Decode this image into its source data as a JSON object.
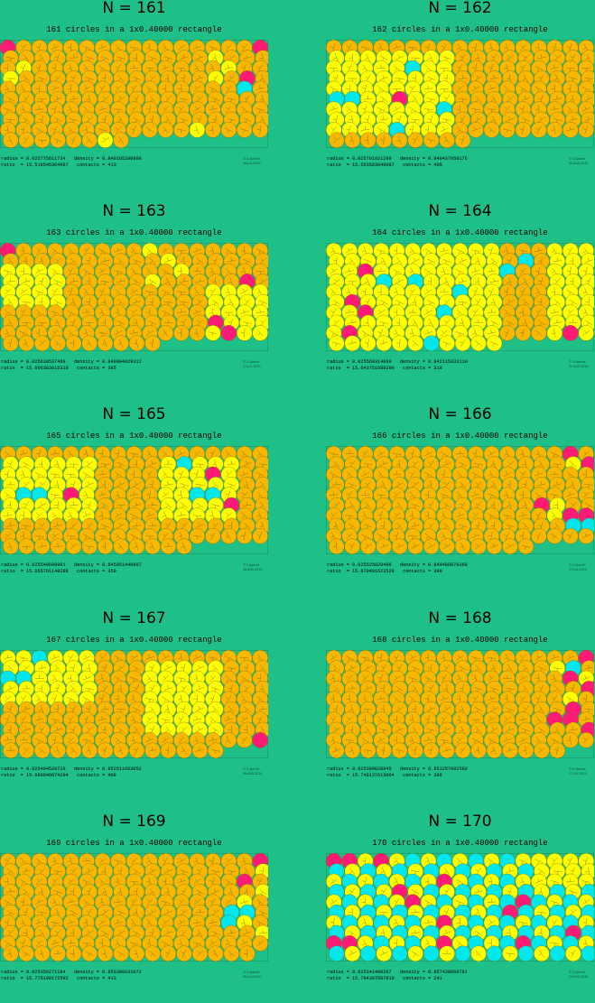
{
  "labels": {
    "radius": "radius =",
    "ratio": "ratio  =",
    "density": "density =",
    "contacts": "contacts ="
  },
  "colors": {
    "background": "#1fbf88",
    "orange": "#f9b800",
    "yellow": "#ffff00",
    "cyan": "#00e8ee",
    "magenta": "#ff1a75",
    "outline": "#7a6000"
  },
  "panels": [
    {
      "n": "N = 161",
      "subtitle": "161 circles in a 1x0.40000 rectangle",
      "radius": "0.025775611734",
      "ratio": "15.518545364987",
      "density": "0.840105290808",
      "contacts": "413",
      "copyright": "© E.Specht",
      "date": "18-JUL-2010",
      "count": 161,
      "special": [
        [
          0,
          0,
          "magenta"
        ],
        [
          0,
          16,
          "magenta"
        ],
        [
          3,
          15,
          "magenta"
        ],
        [
          1,
          13,
          "yellow"
        ],
        [
          2,
          14,
          "yellow"
        ],
        [
          3,
          13,
          "yellow"
        ],
        [
          4,
          15,
          "cyan"
        ],
        [
          2,
          1,
          "yellow"
        ],
        [
          3,
          0,
          "yellow"
        ],
        [
          9,
          14,
          "yellow"
        ],
        [
          9,
          6,
          "yellow"
        ],
        [
          8,
          12,
          "yellow"
        ]
      ]
    },
    {
      "n": "N = 162",
      "subtitle": "162 circles in a 1x0.40000 rectangle",
      "radius": "0.025701021299",
      "ratio": "15.563583849087",
      "density": "0.840437958176",
      "contacts": "405",
      "copyright": "© E.Specht",
      "date": "05-AUG-2010",
      "count": 162,
      "special": [
        [
          5,
          4,
          "magenta"
        ],
        [
          5,
          0,
          "cyan"
        ],
        [
          5,
          1,
          "cyan"
        ],
        [
          6,
          7,
          "cyan"
        ],
        [
          8,
          4,
          "cyan"
        ],
        [
          2,
          5,
          "cyan"
        ]
      ],
      "yellowzone": [
        [
          1,
          0,
          8,
          7
        ]
      ]
    },
    {
      "n": "N = 163",
      "subtitle": "163 circles in a 1x0.40000 rectangle",
      "radius": "0.025630537469",
      "ratio": "15.606383615310",
      "density": "0.840994029312",
      "contacts": "395",
      "copyright": "© E.Specht",
      "date": "17-JUL-2010",
      "count": 163,
      "special": [
        [
          0,
          0,
          "magenta"
        ],
        [
          3,
          15,
          "magenta"
        ],
        [
          7,
          13,
          "magenta"
        ],
        [
          8,
          14,
          "magenta"
        ],
        [
          0,
          9,
          "yellow"
        ],
        [
          1,
          10,
          "yellow"
        ],
        [
          2,
          11,
          "yellow"
        ],
        [
          3,
          9,
          "yellow"
        ]
      ],
      "yellowzone": [
        [
          4,
          13,
          9,
          16
        ],
        [
          2,
          0,
          5,
          3
        ]
      ]
    },
    {
      "n": "N = 164",
      "subtitle": "164 circles in a 1x0.40000 rectangle",
      "radius": "0.025569314060",
      "ratio": "15.643751688290",
      "density": "0.842115933110",
      "contacts": "319",
      "copyright": "© E.Specht",
      "date": "22-AUG-2010",
      "count": 164,
      "special": [
        [
          2,
          2,
          "magenta"
        ],
        [
          5,
          1,
          "magenta"
        ],
        [
          6,
          2,
          "magenta"
        ],
        [
          8,
          1,
          "magenta"
        ],
        [
          8,
          15,
          "magenta"
        ],
        [
          2,
          11,
          "cyan"
        ],
        [
          3,
          5,
          "cyan"
        ],
        [
          1,
          12,
          "cyan"
        ],
        [
          6,
          7,
          "cyan"
        ],
        [
          9,
          6,
          "cyan"
        ],
        [
          4,
          8,
          "cyan"
        ],
        [
          3,
          3,
          "cyan"
        ]
      ],
      "yellowzone": [
        [
          0,
          0,
          9,
          10
        ],
        [
          0,
          14,
          9,
          16
        ]
      ]
    },
    {
      "n": "N = 165",
      "subtitle": "165 circles in a 1x0.40000 rectangle",
      "radius": "0.025549699961",
      "ratio": "15.655761148288",
      "density": "0.845951440807",
      "contacts": "359",
      "copyright": "© E.Specht",
      "date": "18-AUG-2010",
      "count": 165,
      "special": [
        [
          2,
          13,
          "magenta"
        ],
        [
          4,
          4,
          "magenta"
        ],
        [
          5,
          14,
          "magenta"
        ],
        [
          4,
          1,
          "cyan"
        ],
        [
          4,
          2,
          "cyan"
        ],
        [
          1,
          11,
          "cyan"
        ],
        [
          4,
          12,
          "cyan"
        ],
        [
          4,
          13,
          "cyan"
        ]
      ],
      "yellowzone": [
        [
          1,
          0,
          6,
          5
        ],
        [
          1,
          10,
          6,
          14
        ]
      ]
    },
    {
      "n": "N = 166",
      "subtitle": "166 circles in a 1x0.40000 rectangle",
      "radius": "0.025525829498",
      "ratio": "15.670401623528",
      "density": "0.849488878368",
      "contacts": "390",
      "copyright": "© E.Specht",
      "date": "17-JUL-2010",
      "count": 166,
      "special": [
        [
          0,
          15,
          "magenta"
        ],
        [
          1,
          16,
          "magenta"
        ],
        [
          5,
          13,
          "magenta"
        ],
        [
          6,
          15,
          "magenta"
        ],
        [
          6,
          16,
          "magenta"
        ],
        [
          7,
          15,
          "cyan"
        ],
        [
          7,
          16,
          "cyan"
        ],
        [
          5,
          14,
          "yellow"
        ],
        [
          6,
          14,
          "yellow"
        ],
        [
          1,
          15,
          "yellow"
        ]
      ]
    },
    {
      "n": "N = 167",
      "subtitle": "167 circles in a 1x0.40000 rectangle",
      "radius": "0.025494528728",
      "ratio": "15.689640874294",
      "density": "0.852511663052",
      "contacts": "408",
      "copyright": "© E.Specht",
      "date": "08-AUG-2010",
      "count": 167,
      "special": [
        [
          0,
          2,
          "cyan"
        ],
        [
          2,
          1,
          "cyan"
        ],
        [
          2,
          0,
          "cyan"
        ],
        [
          8,
          16,
          "magenta"
        ]
      ],
      "yellowzone": [
        [
          0,
          0,
          4,
          5
        ],
        [
          1,
          9,
          7,
          13
        ]
      ]
    },
    {
      "n": "N = 168",
      "subtitle": "168 circles in a 1x0.40000 rectangle",
      "radius": "0.025399828845",
      "ratio": "15.748137613004",
      "density": "0.851257092580",
      "contacts": "389",
      "copyright": "© E.Specht",
      "date": "17-JUL-2010",
      "count": 168,
      "special": [
        [
          0,
          16,
          "magenta"
        ],
        [
          1,
          15,
          "cyan"
        ],
        [
          2,
          15,
          "magenta"
        ],
        [
          3,
          16,
          "magenta"
        ],
        [
          5,
          15,
          "magenta"
        ],
        [
          6,
          15,
          "magenta"
        ],
        [
          6,
          14,
          "magenta"
        ],
        [
          7,
          16,
          "magenta"
        ],
        [
          1,
          14,
          "yellow"
        ],
        [
          2,
          16,
          "yellow"
        ],
        [
          4,
          15,
          "yellow"
        ]
      ]
    },
    {
      "n": "N = 169",
      "subtitle": "169 circles in a 1x0.40000 rectangle",
      "radius": "0.025356271184",
      "ratio": "15.775190172592",
      "density": "0.853389631072",
      "contacts": "413",
      "copyright": "© E.Specht",
      "date": "05-JUL-2010",
      "count": 169,
      "special": [
        [
          0,
          16,
          "magenta"
        ],
        [
          2,
          15,
          "magenta"
        ],
        [
          5,
          14,
          "cyan"
        ],
        [
          5,
          15,
          "cyan"
        ],
        [
          6,
          14,
          "cyan"
        ],
        [
          1,
          16,
          "yellow"
        ],
        [
          3,
          16,
          "yellow"
        ],
        [
          4,
          15,
          "yellow"
        ],
        [
          6,
          15,
          "yellow"
        ],
        [
          7,
          16,
          "yellow"
        ]
      ]
    },
    {
      "n": "N = 170",
      "subtitle": "170 circles in a 1x0.40000 rectangle",
      "radius": "0.025341480267",
      "ratio": "15.784397587919",
      "density": "0.857438069781",
      "contacts": "241",
      "copyright": "© E.Specht",
      "date": "23-AUG-2010",
      "count": 170,
      "special": [
        [
          0,
          0,
          "magenta"
        ],
        [
          0,
          3,
          "magenta"
        ],
        [
          0,
          1,
          "magenta"
        ],
        [
          2,
          7,
          "magenta"
        ],
        [
          4,
          5,
          "magenta"
        ],
        [
          5,
          11,
          "magenta"
        ],
        [
          4,
          12,
          "magenta"
        ],
        [
          8,
          0,
          "magenta"
        ],
        [
          8,
          1,
          "magenta"
        ],
        [
          8,
          7,
          "magenta"
        ],
        [
          8,
          12,
          "magenta"
        ],
        [
          7,
          15,
          "magenta"
        ],
        [
          3,
          4,
          "magenta"
        ],
        [
          6,
          7,
          "magenta"
        ]
      ],
      "mixed": true
    }
  ]
}
